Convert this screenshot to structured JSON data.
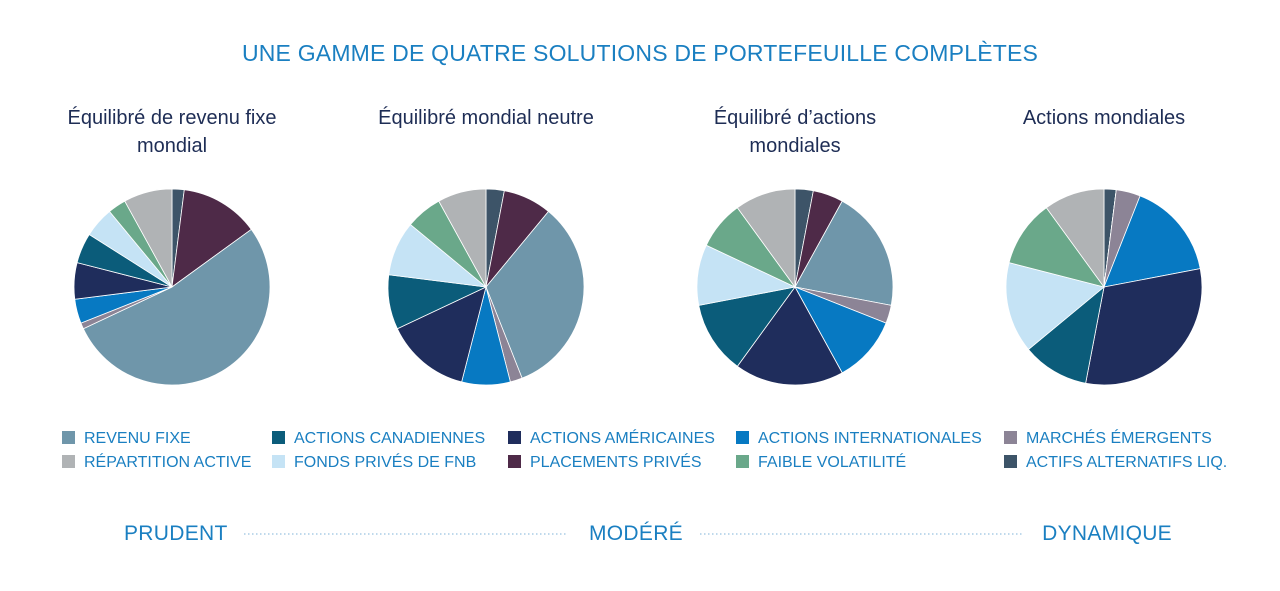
{
  "title": "UNE GAMME DE QUATRE SOLUTIONS DE PORTEFEUILLE COMPLÈTES",
  "categories": [
    "REVENU FIXE",
    "ACTIONS CANADIENNES",
    "ACTIONS AMÉRICAINES",
    "ACTIONS INTERNATIONALES",
    "MARCHÉS ÉMERGENTS",
    "RÉPARTITION ACTIVE",
    "FONDS PRIVÉS DE FNB",
    "PLACEMENTS PRIVÉS",
    "FAIBLE VOLATILITÉ",
    "ACTIFS ALTERNATIFS LIQ."
  ],
  "colors": [
    "#6f96aa",
    "#0b5c7a",
    "#1f2d5c",
    "#0779c2",
    "#8c8496",
    "#b0b3b5",
    "#c5e3f5",
    "#4e2a48",
    "#6aa88a",
    "#3d5468"
  ],
  "chart_data": [
    {
      "type": "pie",
      "title": "Équilibré de revenu fixe mondial",
      "values": [
        53,
        5,
        6,
        4,
        1,
        8,
        5,
        13,
        3,
        2
      ]
    },
    {
      "type": "pie",
      "title": "Équilibré mondial neutre",
      "values": [
        33,
        9,
        14,
        8,
        2,
        8,
        9,
        8,
        6,
        3
      ]
    },
    {
      "type": "pie",
      "title": "Équilibré d’actions mondiales",
      "values": [
        20,
        12,
        18,
        11,
        3,
        10,
        10,
        5,
        8,
        3
      ]
    },
    {
      "type": "pie",
      "title": "Actions mondiales",
      "values": [
        0,
        11,
        31,
        16,
        4,
        10,
        15,
        0,
        11,
        2
      ]
    }
  ],
  "scale": [
    "PRUDENT",
    "MODÉRÉ",
    "DYNAMIQUE"
  ]
}
